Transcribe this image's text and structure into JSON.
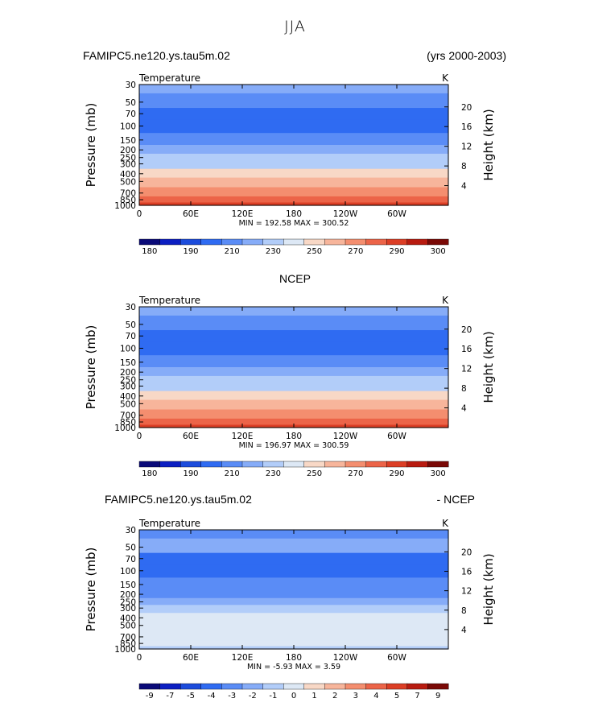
{
  "page": {
    "title": "JJA"
  },
  "palette": {
    "temperature": [
      "#0a0a78",
      "#0c1fc2",
      "#1c4cdc",
      "#2f6bf2",
      "#5a8cf6",
      "#86acf8",
      "#b2cdf9",
      "#dde8f5",
      "#f8d8c6",
      "#f7b59b",
      "#f48e6f",
      "#ec6448",
      "#dc3e25",
      "#b81b10",
      "#7a0906"
    ],
    "difference": [
      "#0a0a78",
      "#0c1fc2",
      "#1c4cdc",
      "#2f6bf2",
      "#5a8cf6",
      "#86acf8",
      "#b2cdf9",
      "#dde8f5",
      "#f8d8c6",
      "#f7b59b",
      "#f48e6f",
      "#ec6448",
      "#dc3e25",
      "#b81b10",
      "#7a0906"
    ]
  },
  "chart_data": [
    {
      "type": "heatmap",
      "panel": "model",
      "title_left": "FAMIPC5.ne120.ys.tau5m.02",
      "title_right": "(yrs 2000-2003)",
      "field_label": "Temperature",
      "units": "K",
      "ylabel": "Pressure  (mb)",
      "ylabel_right": "Height  (km)",
      "yticks": [
        "30",
        "50",
        "70",
        "100",
        "150",
        "200",
        "250",
        "300",
        "400",
        "500",
        "700",
        "850",
        "1000"
      ],
      "yticks_right": [
        "20",
        "16",
        "12",
        "8",
        "4"
      ],
      "xticks": [
        "0",
        "60E",
        "120E",
        "180",
        "120W",
        "60W"
      ],
      "stats": "MIN = 192.58   MAX = 300.52",
      "colorbar_labels": [
        "180",
        "190",
        "210",
        "230",
        "250",
        "270",
        "290",
        "300"
      ],
      "contour_levels": [
        180,
        185,
        190,
        200,
        210,
        220,
        230,
        240,
        250,
        260,
        270,
        280,
        290,
        295,
        300
      ],
      "ylim_mb": [
        1000,
        30
      ],
      "xlim_deg": [
        0,
        360
      ],
      "profile": [
        {
          "p": 30,
          "value": 228
        },
        {
          "p": 50,
          "value": 215
        },
        {
          "p": 70,
          "value": 207
        },
        {
          "p": 100,
          "value": 203
        },
        {
          "p": 150,
          "value": 213
        },
        {
          "p": 200,
          "value": 221
        },
        {
          "p": 250,
          "value": 230
        },
        {
          "p": 300,
          "value": 239
        },
        {
          "p": 400,
          "value": 253
        },
        {
          "p": 500,
          "value": 263
        },
        {
          "p": 700,
          "value": 278
        },
        {
          "p": 850,
          "value": 287
        },
        {
          "p": 1000,
          "value": 294
        }
      ]
    },
    {
      "type": "heatmap",
      "panel": "obs",
      "title_center": "NCEP",
      "field_label": "Temperature",
      "units": "K",
      "ylabel": "Pressure  (mb)",
      "ylabel_right": "Height  (km)",
      "yticks": [
        "30",
        "50",
        "70",
        "100",
        "150",
        "200",
        "250",
        "300",
        "400",
        "500",
        "700",
        "850",
        "1000"
      ],
      "yticks_right": [
        "20",
        "16",
        "12",
        "8",
        "4"
      ],
      "xticks": [
        "0",
        "60E",
        "120E",
        "180",
        "120W",
        "60W"
      ],
      "stats": "MIN = 196.97   MAX = 300.59",
      "colorbar_labels": [
        "180",
        "190",
        "210",
        "230",
        "250",
        "270",
        "290",
        "300"
      ],
      "contour_levels": [
        180,
        185,
        190,
        200,
        210,
        220,
        230,
        240,
        250,
        260,
        270,
        280,
        290,
        295,
        300
      ],
      "ylim_mb": [
        1000,
        30
      ],
      "xlim_deg": [
        0,
        360
      ],
      "profile": [
        {
          "p": 30,
          "value": 222
        },
        {
          "p": 50,
          "value": 213
        },
        {
          "p": 70,
          "value": 207
        },
        {
          "p": 100,
          "value": 200
        },
        {
          "p": 150,
          "value": 213
        },
        {
          "p": 200,
          "value": 221
        },
        {
          "p": 250,
          "value": 230
        },
        {
          "p": 300,
          "value": 239
        },
        {
          "p": 400,
          "value": 253
        },
        {
          "p": 500,
          "value": 263
        },
        {
          "p": 700,
          "value": 278
        },
        {
          "p": 850,
          "value": 287
        },
        {
          "p": 1000,
          "value": 294
        }
      ]
    },
    {
      "type": "heatmap",
      "panel": "difference",
      "title_left": "FAMIPC5.ne120.ys.tau5m.02",
      "title_right": "- NCEP",
      "field_label": "Temperature",
      "units": "K",
      "ylabel": "Pressure  (mb)",
      "ylabel_right": "Height  (km)",
      "yticks": [
        "30",
        "50",
        "70",
        "100",
        "150",
        "200",
        "250",
        "300",
        "400",
        "500",
        "700",
        "850",
        "1000"
      ],
      "yticks_right": [
        "20",
        "16",
        "12",
        "8",
        "4"
      ],
      "xticks": [
        "0",
        "60E",
        "120E",
        "180",
        "120W",
        "60W"
      ],
      "stats": "MIN =   -5.93   MAX =    3.59",
      "colorbar_labels": [
        "-9",
        "-7",
        "-5",
        "-4",
        "-3",
        "-2",
        "-1",
        "0",
        "1",
        "2",
        "3",
        "4",
        "5",
        "7",
        "9"
      ],
      "contour_levels": [
        -9,
        -7,
        -5,
        -4,
        -3,
        -2,
        -1,
        0,
        1,
        2,
        3,
        4,
        5,
        7,
        9
      ],
      "ylim_mb": [
        1000,
        30
      ],
      "xlim_deg": [
        0,
        360
      ],
      "profile": [
        {
          "p": 30,
          "value": -2.5
        },
        {
          "p": 50,
          "value": -1.5
        },
        {
          "p": 70,
          "value": -3.5
        },
        {
          "p": 100,
          "value": -3.5
        },
        {
          "p": 150,
          "value": -2.5
        },
        {
          "p": 200,
          "value": -2.5
        },
        {
          "p": 250,
          "value": -1.5
        },
        {
          "p": 300,
          "value": -0.5
        },
        {
          "p": 400,
          "value": 0.5
        },
        {
          "p": 500,
          "value": 0.5
        },
        {
          "p": 700,
          "value": 0.5
        },
        {
          "p": 850,
          "value": 0.5
        },
        {
          "p": 1000,
          "value": -0.5
        }
      ]
    }
  ]
}
